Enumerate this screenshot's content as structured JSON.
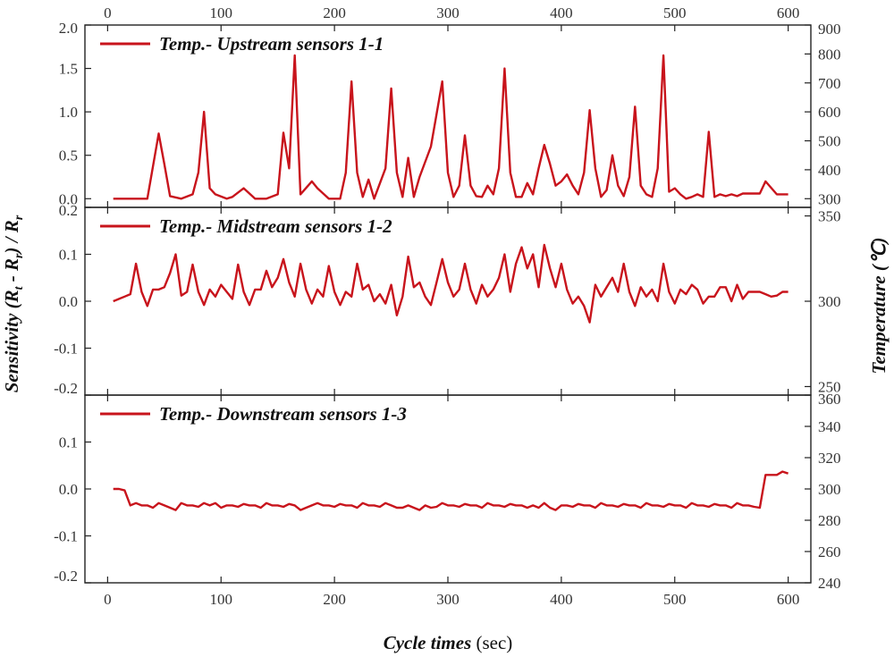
{
  "chart_data": {
    "type": "line",
    "color": "#c8141c",
    "xlabel": {
      "italic": "Cycle times",
      "unit": " (sec)"
    },
    "ylabel_left": "Sensitivity (R<sub>t</sub> - R<sub>r</sub>) / R<sub>r</sub>",
    "ylabel_left_parts": [
      "Sensitivity (R",
      "t",
      " - R",
      "r",
      ") / R",
      "r"
    ],
    "ylabel_right": "Temperature (℃)",
    "xlim": [
      -20,
      620
    ],
    "xticks": [
      0,
      100,
      200,
      300,
      400,
      500,
      600
    ],
    "panels": [
      {
        "name": "Temp.- Upstream sensors 1-1",
        "ylim": [
          -0.1,
          2.0
        ],
        "yticks": [
          0.0,
          0.5,
          1.0,
          1.5,
          2.0
        ],
        "ytick_labels": [
          "0.0",
          "0.5",
          "1.0",
          "1.5",
          "2.0"
        ],
        "y2lim": [
          270,
          900
        ],
        "y2ticks": [
          300,
          400,
          500,
          600,
          700,
          800,
          900
        ],
        "x": [
          5,
          15,
          25,
          35,
          45,
          50,
          55,
          65,
          75,
          80,
          85,
          90,
          95,
          105,
          110,
          120,
          130,
          140,
          150,
          155,
          160,
          165,
          170,
          180,
          185,
          195,
          205,
          210,
          215,
          220,
          225,
          230,
          235,
          245,
          250,
          255,
          260,
          265,
          270,
          275,
          285,
          295,
          300,
          305,
          310,
          315,
          320,
          325,
          330,
          335,
          340,
          345,
          350,
          355,
          360,
          365,
          370,
          375,
          380,
          385,
          390,
          395,
          400,
          405,
          410,
          415,
          420,
          425,
          430,
          435,
          440,
          445,
          450,
          455,
          460,
          465,
          470,
          475,
          480,
          485,
          490,
          495,
          500,
          505,
          510,
          515,
          520,
          525,
          530,
          535,
          540,
          545,
          550,
          555,
          560,
          565,
          570,
          575,
          580,
          590,
          595,
          600
        ],
        "values": [
          0.0,
          0.0,
          0.0,
          0.0,
          0.75,
          0.4,
          0.03,
          0.0,
          0.05,
          0.3,
          1.0,
          0.12,
          0.05,
          0.0,
          0.02,
          0.12,
          0.0,
          0.0,
          0.05,
          0.76,
          0.35,
          1.65,
          0.05,
          0.2,
          0.12,
          0.0,
          0.0,
          0.3,
          1.35,
          0.3,
          0.02,
          0.22,
          0.0,
          0.35,
          1.27,
          0.3,
          0.02,
          0.47,
          0.02,
          0.25,
          0.6,
          1.35,
          0.3,
          0.02,
          0.15,
          0.73,
          0.15,
          0.03,
          0.02,
          0.15,
          0.05,
          0.35,
          1.5,
          0.3,
          0.02,
          0.02,
          0.18,
          0.05,
          0.35,
          0.62,
          0.4,
          0.15,
          0.2,
          0.28,
          0.15,
          0.05,
          0.3,
          1.02,
          0.35,
          0.02,
          0.1,
          0.5,
          0.15,
          0.03,
          0.25,
          1.06,
          0.15,
          0.05,
          0.02,
          0.35,
          1.65,
          0.08,
          0.12,
          0.05,
          0.0,
          0.02,
          0.05,
          0.02,
          0.77,
          0.02,
          0.05,
          0.03,
          0.05,
          0.03,
          0.06,
          0.06,
          0.06,
          0.06,
          0.2,
          0.05,
          0.05,
          0.05
        ]
      },
      {
        "name": "Temp.- Midstream sensors 1-2",
        "ylim": [
          -0.2,
          0.2
        ],
        "yticks": [
          -0.2,
          -0.1,
          0.0,
          0.1,
          0.2
        ],
        "ytick_labels": [
          "-0.2",
          "-0.1",
          "0.0",
          "0.1",
          "0.2"
        ],
        "y2lim": [
          245,
          355
        ],
        "y2ticks": [
          250,
          300,
          350
        ],
        "x": [
          5,
          10,
          15,
          20,
          25,
          30,
          35,
          40,
          45,
          50,
          55,
          60,
          65,
          70,
          75,
          80,
          85,
          90,
          95,
          100,
          105,
          110,
          115,
          120,
          125,
          130,
          135,
          140,
          145,
          150,
          155,
          160,
          165,
          170,
          175,
          180,
          185,
          190,
          195,
          200,
          205,
          210,
          215,
          220,
          225,
          230,
          235,
          240,
          245,
          250,
          255,
          260,
          265,
          270,
          275,
          280,
          285,
          290,
          295,
          300,
          305,
          310,
          315,
          320,
          325,
          330,
          335,
          340,
          345,
          350,
          355,
          360,
          365,
          370,
          375,
          380,
          385,
          390,
          395,
          400,
          405,
          410,
          415,
          420,
          425,
          430,
          435,
          440,
          445,
          450,
          455,
          460,
          465,
          470,
          475,
          480,
          485,
          490,
          495,
          500,
          505,
          510,
          515,
          520,
          525,
          530,
          535,
          540,
          545,
          550,
          555,
          560,
          565,
          570,
          575,
          580,
          585,
          590,
          595,
          600
        ],
        "values": [
          0.0,
          0.005,
          0.01,
          0.015,
          0.08,
          0.02,
          -0.01,
          0.025,
          0.025,
          0.03,
          0.06,
          0.1,
          0.012,
          0.02,
          0.078,
          0.02,
          -0.008,
          0.025,
          0.01,
          0.035,
          0.02,
          0.005,
          0.078,
          0.02,
          -0.008,
          0.025,
          0.025,
          0.065,
          0.03,
          0.05,
          0.09,
          0.04,
          0.01,
          0.08,
          0.025,
          -0.005,
          0.025,
          0.01,
          0.075,
          0.02,
          -0.008,
          0.02,
          0.01,
          0.08,
          0.025,
          0.035,
          0.0,
          0.015,
          -0.005,
          0.035,
          -0.03,
          0.01,
          0.095,
          0.03,
          0.04,
          0.01,
          -0.008,
          0.04,
          0.09,
          0.04,
          0.01,
          0.025,
          0.08,
          0.025,
          -0.005,
          0.035,
          0.01,
          0.025,
          0.05,
          0.1,
          0.02,
          0.08,
          0.115,
          0.07,
          0.1,
          0.03,
          0.12,
          0.07,
          0.03,
          0.08,
          0.025,
          -0.005,
          0.01,
          -0.01,
          -0.045,
          0.035,
          0.01,
          0.03,
          0.05,
          0.02,
          0.08,
          0.02,
          -0.01,
          0.03,
          0.01,
          0.025,
          0.0,
          0.08,
          0.02,
          -0.005,
          0.025,
          0.015,
          0.035,
          0.025,
          -0.005,
          0.01,
          0.01,
          0.03,
          0.03,
          0.0,
          0.035,
          0.005,
          0.02,
          0.02,
          0.02,
          0.015,
          0.01,
          0.012,
          0.02,
          0.02
        ]
      },
      {
        "name": "Temp.- Downstream sensors 1-3",
        "ylim": [
          -0.2,
          0.2
        ],
        "yticks": [
          -0.2,
          -0.1,
          0.0,
          0.1
        ],
        "ytick_labels": [
          "-0.2",
          "-0.1",
          "0.0",
          "0.1"
        ],
        "y2lim": [
          240,
          360
        ],
        "y2ticks": [
          240,
          260,
          280,
          300,
          320,
          340,
          360
        ],
        "x": [
          5,
          10,
          15,
          20,
          25,
          30,
          35,
          40,
          45,
          50,
          55,
          60,
          65,
          70,
          75,
          80,
          85,
          90,
          95,
          100,
          105,
          110,
          115,
          120,
          125,
          130,
          135,
          140,
          145,
          150,
          155,
          160,
          165,
          170,
          175,
          180,
          185,
          190,
          195,
          200,
          205,
          210,
          215,
          220,
          225,
          230,
          235,
          240,
          245,
          250,
          255,
          260,
          265,
          270,
          275,
          280,
          285,
          290,
          295,
          300,
          305,
          310,
          315,
          320,
          325,
          330,
          335,
          340,
          345,
          350,
          355,
          360,
          365,
          370,
          375,
          380,
          385,
          390,
          395,
          400,
          405,
          410,
          415,
          420,
          425,
          430,
          435,
          440,
          445,
          450,
          455,
          460,
          465,
          470,
          475,
          480,
          485,
          490,
          495,
          500,
          505,
          510,
          515,
          520,
          525,
          530,
          535,
          540,
          545,
          550,
          555,
          560,
          565,
          570,
          575,
          580,
          585,
          590,
          595,
          600
        ],
        "values": [
          0.0,
          0.0,
          -0.003,
          -0.035,
          -0.03,
          -0.035,
          -0.035,
          -0.04,
          -0.03,
          -0.035,
          -0.04,
          -0.045,
          -0.03,
          -0.035,
          -0.035,
          -0.038,
          -0.03,
          -0.035,
          -0.03,
          -0.04,
          -0.035,
          -0.035,
          -0.038,
          -0.032,
          -0.035,
          -0.035,
          -0.04,
          -0.03,
          -0.035,
          -0.035,
          -0.038,
          -0.032,
          -0.035,
          -0.045,
          -0.04,
          -0.035,
          -0.03,
          -0.035,
          -0.035,
          -0.038,
          -0.032,
          -0.035,
          -0.035,
          -0.04,
          -0.03,
          -0.035,
          -0.035,
          -0.038,
          -0.03,
          -0.035,
          -0.04,
          -0.04,
          -0.035,
          -0.04,
          -0.045,
          -0.035,
          -0.04,
          -0.038,
          -0.03,
          -0.035,
          -0.035,
          -0.038,
          -0.032,
          -0.035,
          -0.035,
          -0.04,
          -0.03,
          -0.035,
          -0.035,
          -0.038,
          -0.032,
          -0.035,
          -0.035,
          -0.04,
          -0.035,
          -0.04,
          -0.03,
          -0.04,
          -0.045,
          -0.035,
          -0.035,
          -0.038,
          -0.032,
          -0.035,
          -0.035,
          -0.04,
          -0.03,
          -0.035,
          -0.035,
          -0.038,
          -0.032,
          -0.035,
          -0.035,
          -0.04,
          -0.03,
          -0.035,
          -0.035,
          -0.038,
          -0.032,
          -0.035,
          -0.035,
          -0.04,
          -0.03,
          -0.035,
          -0.035,
          -0.038,
          -0.032,
          -0.035,
          -0.035,
          -0.04,
          -0.03,
          -0.035,
          -0.035,
          -0.038,
          -0.04,
          0.03,
          0.03,
          0.03,
          0.037,
          0.033
        ]
      }
    ]
  }
}
